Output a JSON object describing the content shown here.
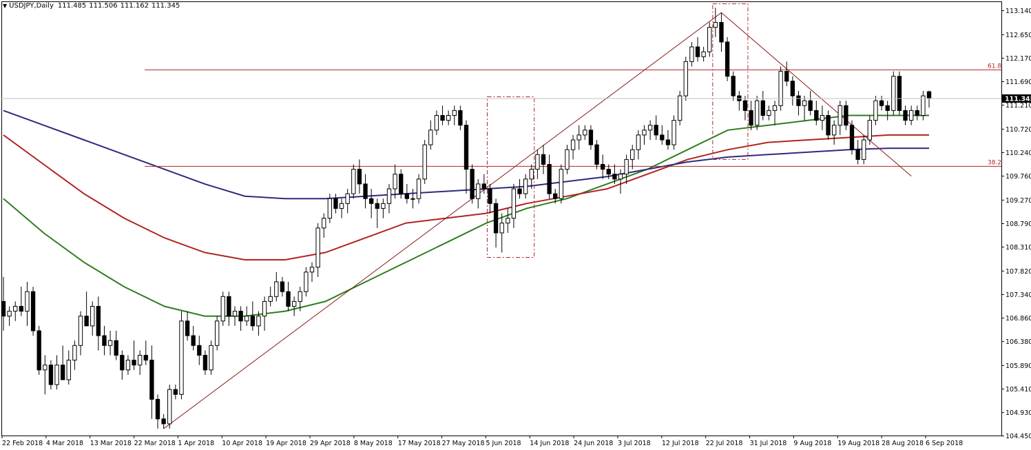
{
  "chart_title": {
    "symbol": "USDJPY,Daily",
    "open": "111.485",
    "high": "111.506",
    "low": "111.162",
    "close": "111.345"
  },
  "chart_data": {
    "type": "candlestick",
    "symbol": "USDJPY",
    "timeframe": "Daily",
    "current_price": "111.345",
    "ylim": [
      104.46,
      113.33
    ],
    "y_ticks": [
      "113.140",
      "112.650",
      "112.170",
      "111.690",
      "111.210",
      "110.720",
      "110.240",
      "109.760",
      "109.270",
      "108.790",
      "108.310",
      "107.820",
      "107.340",
      "106.860",
      "106.380",
      "105.890",
      "105.410",
      "104.930",
      "104.450"
    ],
    "x_ticks": [
      "22 Feb 2018",
      "4 Mar 2018",
      "13 Mar 2018",
      "22 Mar 2018",
      "1 Apr 2018",
      "10 Apr 2018",
      "19 Apr 2018",
      "29 Apr 2018",
      "8 May 2018",
      "17 May 2018",
      "27 May 2018",
      "5 Jun 2018",
      "14 Jun 2018",
      "24 Jun 2018",
      "3 Jul 2018",
      "12 Jul 2018",
      "22 Jul 2018",
      "31 Jul 2018",
      "9 Aug 2018",
      "19 Aug 2018",
      "28 Aug 2018",
      "6 Sep 2018"
    ],
    "candles": [
      [
        107.2,
        107.7,
        106.6,
        106.9
      ],
      [
        106.9,
        107.1,
        106.7,
        107.0
      ],
      [
        107.0,
        107.2,
        106.8,
        107.1
      ],
      [
        107.1,
        107.5,
        106.9,
        107.0
      ],
      [
        107.0,
        107.6,
        106.7,
        107.4
      ],
      [
        107.4,
        107.5,
        106.5,
        106.6
      ],
      [
        106.6,
        106.7,
        105.7,
        105.8
      ],
      [
        105.8,
        106.1,
        105.3,
        105.9
      ],
      [
        105.9,
        106.0,
        105.4,
        105.5
      ],
      [
        105.5,
        106.1,
        105.4,
        105.9
      ],
      [
        105.9,
        106.3,
        105.6,
        105.6
      ],
      [
        105.6,
        106.2,
        105.5,
        106.0
      ],
      [
        106.0,
        106.4,
        105.8,
        106.3
      ],
      [
        106.3,
        107.0,
        106.1,
        106.9
      ],
      [
        106.9,
        107.4,
        106.7,
        106.7
      ],
      [
        106.7,
        107.2,
        106.5,
        107.1
      ],
      [
        107.1,
        107.3,
        106.2,
        106.5
      ],
      [
        106.5,
        106.7,
        106.1,
        106.3
      ],
      [
        106.3,
        106.6,
        106.1,
        106.4
      ],
      [
        106.4,
        106.6,
        106.0,
        106.1
      ],
      [
        106.1,
        106.2,
        105.6,
        105.8
      ],
      [
        105.8,
        106.1,
        105.7,
        106.0
      ],
      [
        106.0,
        106.4,
        105.8,
        105.9
      ],
      [
        105.9,
        106.2,
        105.7,
        106.1
      ],
      [
        106.1,
        106.4,
        105.9,
        106.0
      ],
      [
        106.0,
        106.3,
        104.8,
        105.2
      ],
      [
        105.2,
        105.3,
        104.6,
        104.8
      ],
      [
        104.8,
        104.9,
        104.6,
        104.7
      ],
      [
        104.7,
        105.5,
        104.6,
        105.4
      ],
      [
        105.4,
        105.5,
        105.2,
        105.3
      ],
      [
        105.3,
        107.0,
        105.2,
        106.8
      ],
      [
        106.8,
        107.0,
        106.4,
        106.5
      ],
      [
        106.5,
        106.7,
        106.2,
        106.3
      ],
      [
        106.3,
        106.5,
        105.9,
        106.1
      ],
      [
        106.1,
        106.2,
        105.7,
        105.8
      ],
      [
        105.8,
        106.4,
        105.7,
        106.3
      ],
      [
        106.3,
        106.9,
        106.2,
        106.8
      ],
      [
        106.8,
        107.4,
        106.7,
        107.3
      ],
      [
        107.3,
        107.4,
        106.7,
        106.9
      ],
      [
        106.9,
        107.1,
        106.7,
        107.0
      ],
      [
        107.0,
        107.1,
        106.6,
        106.8
      ],
      [
        106.8,
        107.1,
        106.7,
        106.9
      ],
      [
        106.9,
        107.2,
        106.6,
        106.7
      ],
      [
        106.7,
        107.0,
        106.5,
        106.9
      ],
      [
        106.9,
        107.3,
        106.6,
        107.2
      ],
      [
        107.2,
        107.5,
        107.1,
        107.3
      ],
      [
        107.3,
        107.8,
        107.2,
        107.6
      ],
      [
        107.6,
        107.7,
        107.3,
        107.4
      ],
      [
        107.4,
        107.6,
        107.0,
        107.1
      ],
      [
        107.1,
        107.3,
        106.9,
        107.2
      ],
      [
        107.2,
        107.5,
        107.0,
        107.4
      ],
      [
        107.4,
        107.9,
        107.3,
        107.8
      ],
      [
        107.8,
        108.0,
        107.6,
        107.9
      ],
      [
        107.9,
        108.8,
        107.7,
        108.7
      ],
      [
        108.7,
        109.0,
        108.5,
        108.9
      ],
      [
        108.9,
        109.4,
        108.8,
        109.3
      ],
      [
        109.3,
        109.4,
        109.0,
        109.1
      ],
      [
        109.1,
        109.3,
        108.9,
        109.2
      ],
      [
        109.2,
        109.5,
        109.0,
        109.4
      ],
      [
        109.4,
        110.0,
        109.3,
        109.9
      ],
      [
        109.9,
        110.1,
        109.4,
        109.6
      ],
      [
        109.6,
        109.8,
        109.1,
        109.3
      ],
      [
        109.3,
        109.5,
        108.9,
        109.2
      ],
      [
        109.2,
        109.3,
        108.7,
        109.1
      ],
      [
        109.1,
        109.3,
        108.9,
        109.2
      ],
      [
        109.2,
        109.6,
        109.0,
        109.5
      ],
      [
        109.5,
        110.0,
        109.3,
        109.8
      ],
      [
        109.8,
        109.9,
        109.3,
        109.4
      ],
      [
        109.4,
        109.6,
        109.2,
        109.3
      ],
      [
        109.3,
        109.5,
        109.1,
        109.3
      ],
      [
        109.3,
        109.8,
        109.2,
        109.7
      ],
      [
        109.7,
        110.5,
        109.6,
        110.4
      ],
      [
        110.4,
        110.9,
        110.3,
        110.7
      ],
      [
        110.7,
        111.1,
        110.6,
        111.0
      ],
      [
        111.0,
        111.2,
        110.8,
        110.9
      ],
      [
        110.9,
        111.1,
        110.8,
        111.0
      ],
      [
        111.0,
        111.2,
        110.8,
        111.1
      ],
      [
        111.1,
        111.2,
        110.7,
        110.8
      ],
      [
        110.8,
        110.9,
        109.4,
        109.9
      ],
      [
        109.9,
        110.0,
        109.2,
        109.3
      ],
      [
        109.3,
        109.7,
        109.1,
        109.6
      ],
      [
        109.6,
        109.8,
        109.4,
        109.5
      ],
      [
        109.5,
        109.6,
        109.0,
        109.2
      ],
      [
        109.2,
        109.3,
        108.3,
        108.6
      ],
      [
        108.6,
        109.0,
        108.2,
        108.8
      ],
      [
        108.8,
        109.1,
        108.6,
        108.9
      ],
      [
        108.9,
        109.6,
        108.7,
        109.5
      ],
      [
        109.5,
        109.7,
        109.3,
        109.4
      ],
      [
        109.4,
        109.8,
        109.3,
        109.7
      ],
      [
        109.7,
        110.0,
        109.5,
        109.9
      ],
      [
        109.9,
        110.3,
        109.7,
        110.2
      ],
      [
        110.2,
        110.4,
        109.8,
        110.0
      ],
      [
        110.0,
        110.2,
        109.3,
        109.4
      ],
      [
        109.4,
        109.5,
        109.2,
        109.3
      ],
      [
        109.3,
        110.0,
        109.2,
        109.9
      ],
      [
        109.9,
        110.4,
        109.8,
        110.3
      ],
      [
        110.3,
        110.6,
        110.1,
        110.5
      ],
      [
        110.5,
        110.8,
        110.3,
        110.6
      ],
      [
        110.6,
        110.8,
        110.5,
        110.7
      ],
      [
        110.7,
        110.8,
        110.3,
        110.4
      ],
      [
        110.4,
        110.5,
        109.9,
        110.0
      ],
      [
        110.0,
        110.2,
        109.7,
        109.9
      ],
      [
        109.9,
        110.0,
        109.7,
        109.8
      ],
      [
        109.8,
        110.0,
        109.6,
        109.7
      ],
      [
        109.7,
        109.9,
        109.4,
        109.8
      ],
      [
        109.8,
        110.2,
        109.6,
        110.1
      ],
      [
        110.1,
        110.4,
        109.9,
        110.3
      ],
      [
        110.3,
        110.7,
        110.1,
        110.6
      ],
      [
        110.6,
        110.8,
        110.4,
        110.7
      ],
      [
        110.7,
        110.9,
        110.5,
        110.8
      ],
      [
        110.8,
        111.0,
        110.5,
        110.6
      ],
      [
        110.6,
        110.8,
        110.4,
        110.5
      ],
      [
        110.5,
        110.7,
        110.3,
        110.4
      ],
      [
        110.4,
        111.0,
        110.3,
        110.9
      ],
      [
        110.9,
        111.5,
        110.8,
        111.4
      ],
      [
        111.4,
        112.2,
        111.3,
        112.1
      ],
      [
        112.1,
        112.5,
        112.0,
        112.4
      ],
      [
        112.4,
        112.6,
        112.1,
        112.2
      ],
      [
        112.2,
        112.4,
        112.1,
        112.3
      ],
      [
        112.3,
        112.9,
        112.2,
        112.8
      ],
      [
        112.8,
        113.2,
        112.6,
        112.9
      ],
      [
        112.9,
        113.1,
        112.3,
        112.5
      ],
      [
        112.5,
        112.6,
        111.7,
        111.8
      ],
      [
        111.8,
        111.9,
        111.3,
        111.4
      ],
      [
        111.4,
        111.5,
        111.1,
        111.3
      ],
      [
        111.3,
        111.4,
        110.9,
        111.1
      ],
      [
        111.1,
        111.3,
        110.7,
        110.8
      ],
      [
        110.8,
        111.4,
        110.7,
        111.3
      ],
      [
        111.3,
        111.5,
        110.9,
        111.0
      ],
      [
        111.0,
        111.2,
        110.9,
        111.1
      ],
      [
        111.1,
        111.3,
        110.8,
        111.2
      ],
      [
        111.2,
        112.0,
        111.1,
        111.9
      ],
      [
        111.9,
        112.1,
        111.6,
        111.7
      ],
      [
        111.7,
        111.8,
        111.2,
        111.4
      ],
      [
        111.4,
        111.5,
        111.0,
        111.2
      ],
      [
        111.2,
        111.4,
        110.9,
        111.3
      ],
      [
        111.3,
        111.5,
        111.0,
        111.1
      ],
      [
        111.1,
        111.3,
        110.8,
        110.9
      ],
      [
        110.9,
        111.2,
        110.7,
        111.0
      ],
      [
        111.0,
        111.1,
        110.5,
        110.6
      ],
      [
        110.6,
        110.9,
        110.4,
        110.8
      ],
      [
        110.8,
        111.3,
        110.6,
        111.2
      ],
      [
        111.2,
        111.3,
        110.7,
        110.8
      ],
      [
        110.8,
        110.9,
        110.2,
        110.3
      ],
      [
        110.3,
        110.5,
        110.0,
        110.1
      ],
      [
        110.1,
        110.6,
        110.0,
        110.5
      ],
      [
        110.5,
        111.0,
        110.4,
        110.9
      ],
      [
        110.9,
        111.4,
        110.8,
        111.3
      ],
      [
        111.3,
        111.4,
        111.1,
        111.2
      ],
      [
        111.2,
        111.3,
        110.9,
        111.1
      ],
      [
        111.1,
        111.9,
        111.0,
        111.8
      ],
      [
        111.8,
        111.9,
        111.0,
        111.1
      ],
      [
        111.1,
        111.2,
        110.8,
        110.9
      ],
      [
        110.9,
        111.2,
        110.8,
        111.1
      ],
      [
        111.1,
        111.2,
        110.9,
        111.0
      ],
      [
        111.0,
        111.5,
        110.9,
        111.4
      ],
      [
        111.485,
        111.506,
        111.162,
        111.345
      ]
    ],
    "moving_averages": [
      {
        "color": "#2e7d1f",
        "values": [
          109.3,
          108.6,
          108.0,
          107.5,
          107.1,
          106.9,
          106.9,
          107.0,
          107.2,
          107.6,
          108.0,
          108.4,
          108.8,
          109.1,
          109.3,
          109.6,
          109.9,
          110.3,
          110.7,
          110.8,
          110.9,
          111.0,
          111.0,
          111.0
        ]
      },
      {
        "color": "#b22222",
        "values": [
          110.6,
          110.0,
          109.4,
          108.9,
          108.5,
          108.2,
          108.05,
          108.05,
          108.2,
          108.5,
          108.8,
          108.9,
          109.0,
          109.2,
          109.35,
          109.5,
          109.8,
          110.1,
          110.3,
          110.45,
          110.5,
          110.55,
          110.6,
          110.6
        ]
      },
      {
        "color": "#2b2b7f",
        "values": [
          111.1,
          110.8,
          110.5,
          110.2,
          109.9,
          109.6,
          109.35,
          109.3,
          109.3,
          109.35,
          109.4,
          109.45,
          109.5,
          109.55,
          109.65,
          109.75,
          109.9,
          110.05,
          110.15,
          110.2,
          110.25,
          110.3,
          110.33,
          110.33
        ]
      }
    ],
    "fibonacci": [
      {
        "label": "61.8",
        "value": 111.93
      },
      {
        "label": "38.2",
        "value": 109.96
      }
    ],
    "current_price_label": "111.345"
  }
}
